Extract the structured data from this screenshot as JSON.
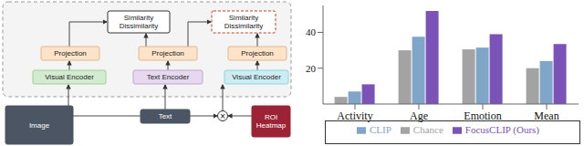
{
  "diagram": {
    "nodes": [
      {
        "label": [
          "Similarity",
          "Dissimilarity"
        ]
      },
      {
        "label": [
          "Similarity",
          "Dissimilarity"
        ]
      },
      {
        "label": [
          "Projection"
        ]
      },
      {
        "label": [
          "Projection"
        ]
      },
      {
        "label": [
          "Projection"
        ]
      },
      {
        "label": [
          "Visual Encoder"
        ]
      },
      {
        "label": [
          "Text Encoder"
        ]
      },
      {
        "label": [
          "Visual Encoder"
        ]
      },
      {
        "label": [
          "Image"
        ]
      },
      {
        "label": [
          "Text"
        ]
      },
      {
        "label": [
          "ROI",
          "Heatmap"
        ]
      }
    ],
    "operator": "×"
  },
  "chart_data": {
    "type": "bar",
    "categories": [
      "Activity",
      "Age",
      "Emotion",
      "Mean"
    ],
    "series": [
      {
        "name": "Chance",
        "color": "#a3a3a3",
        "values": [
          4,
          30,
          30.5,
          20
        ]
      },
      {
        "name": "CLIP",
        "color": "#7fa6c9",
        "values": [
          7,
          37.5,
          31.5,
          24
        ]
      },
      {
        "name": "FocusCLIP (Ours)",
        "color": "#7a52b8",
        "values": [
          11,
          52,
          39,
          33.5
        ]
      }
    ],
    "ylim": [
      0,
      55
    ],
    "yticks": [
      20,
      40
    ],
    "grid": false,
    "legend": "bottom"
  }
}
